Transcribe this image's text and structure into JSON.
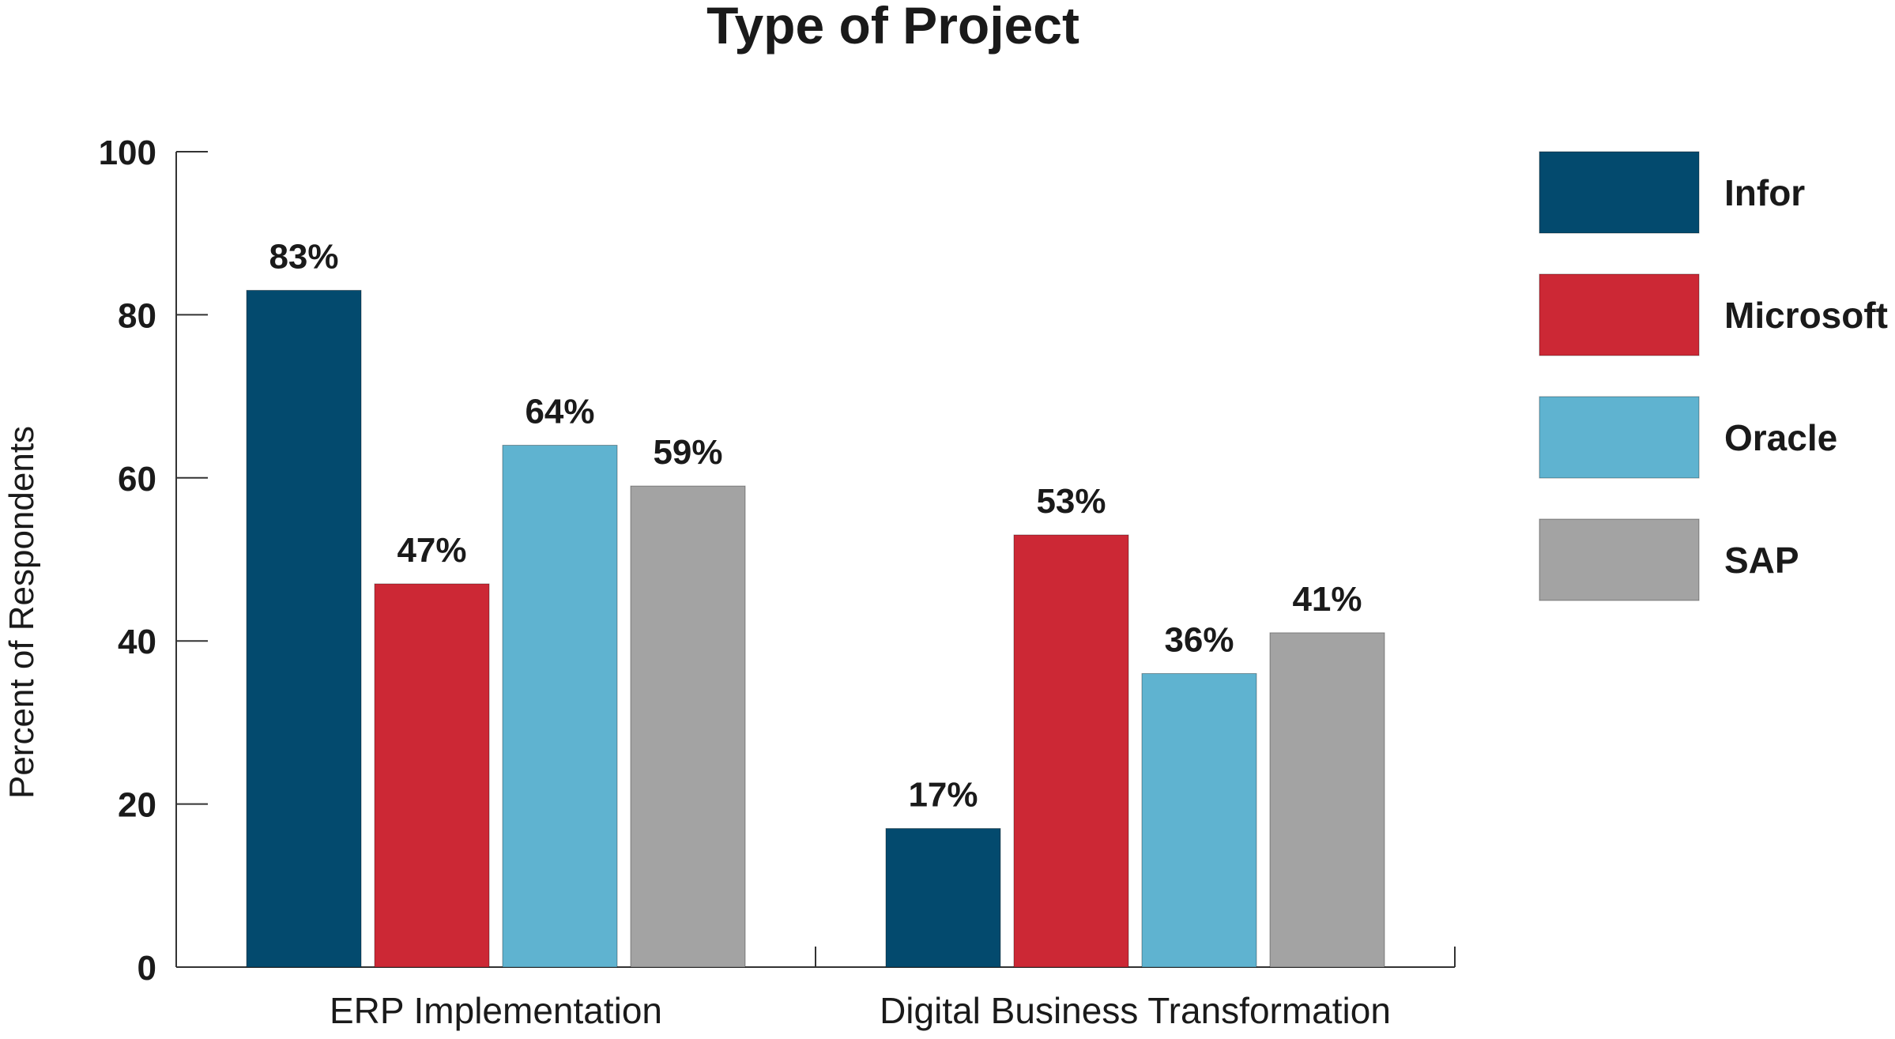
{
  "chart_data": {
    "type": "bar",
    "title": "Type of Project",
    "ylabel": "Percent of Respondents",
    "xlabel": "",
    "ylim": [
      0,
      100
    ],
    "yticks": [
      0,
      20,
      40,
      60,
      80,
      100
    ],
    "categories": [
      "ERP Implementation",
      "Digital Business Transformation"
    ],
    "series": [
      {
        "name": "Infor",
        "values": [
          83,
          17
        ],
        "labels": [
          "83%",
          "17%"
        ],
        "color": "#034a6e"
      },
      {
        "name": "Microsoft",
        "values": [
          47,
          53
        ],
        "labels": [
          "47%",
          "53%"
        ],
        "color": "#cc2835"
      },
      {
        "name": "Oracle",
        "values": [
          64,
          36
        ],
        "labels": [
          "64%",
          "36%"
        ],
        "color": "#5fb3d0"
      },
      {
        "name": "SAP",
        "values": [
          59,
          41
        ],
        "labels": [
          "59%",
          "41%"
        ],
        "color": "#a3a3a3"
      }
    ],
    "legend_position": "right",
    "grid": false
  }
}
